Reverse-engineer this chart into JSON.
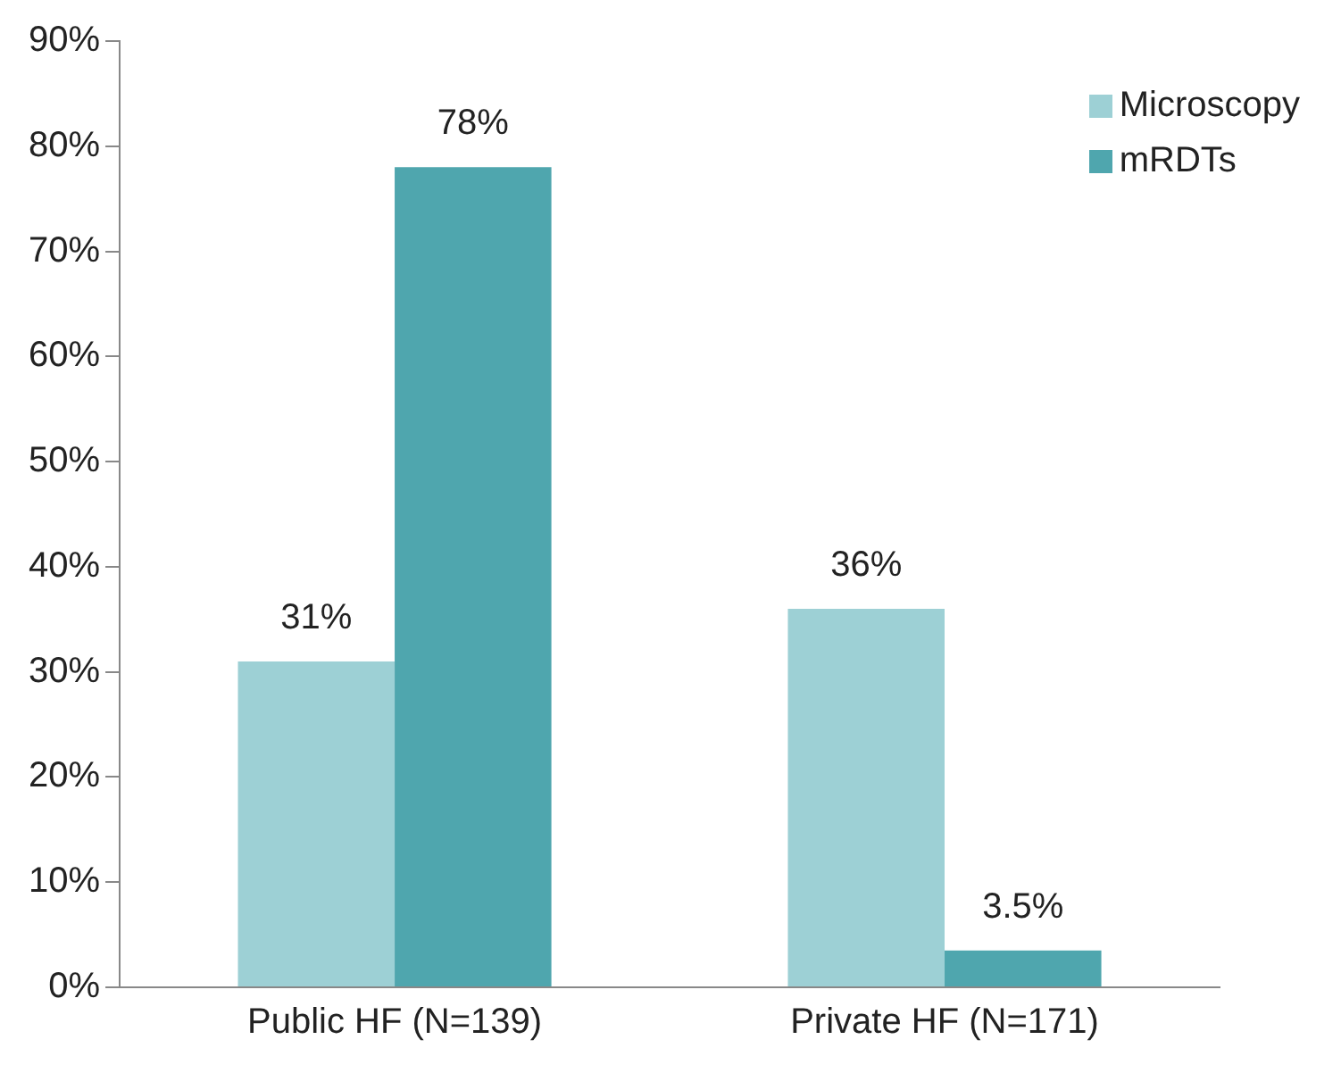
{
  "chart_data": {
    "type": "bar",
    "categories": [
      "Public HF (N=139)",
      "Private HF (N=171)"
    ],
    "series": [
      {
        "name": "Microscopy",
        "color": "#9dd0d5",
        "values": [
          31,
          36
        ],
        "value_labels": [
          "31%",
          "36%"
        ]
      },
      {
        "name": "mRDTs",
        "color": "#4fa6ae",
        "values": [
          78,
          3.5
        ],
        "value_labels": [
          "78%",
          "3.5%"
        ]
      }
    ],
    "ylim": [
      0,
      90
    ],
    "yticks": [
      {
        "value": 0,
        "label": "0%"
      },
      {
        "value": 10,
        "label": "10%"
      },
      {
        "value": 20,
        "label": "20%"
      },
      {
        "value": 30,
        "label": "30%"
      },
      {
        "value": 40,
        "label": "40%"
      },
      {
        "value": 50,
        "label": "50%"
      },
      {
        "value": 60,
        "label": "60%"
      },
      {
        "value": 70,
        "label": "70%"
      },
      {
        "value": 80,
        "label": "80%"
      },
      {
        "value": 90,
        "label": "90%"
      }
    ],
    "grid": false,
    "legend": "top right"
  }
}
